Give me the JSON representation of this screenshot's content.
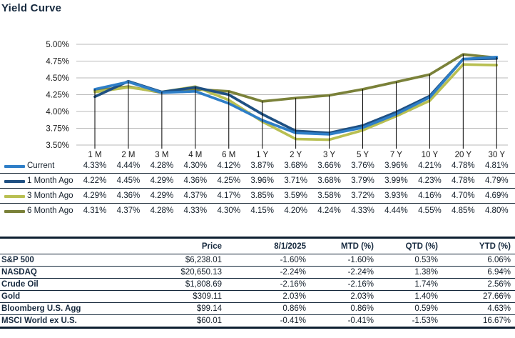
{
  "title": "Yield Curve",
  "colors": {
    "current": "#2E7EC7",
    "one_month_ago": "#1F5082",
    "three_month_ago": "#B8BF52",
    "six_month_ago": "#7A8139",
    "grid_line": "#b9b9b9",
    "drop_line": "#000000",
    "axis_text": "#1a1a1a",
    "border_dark": "#0d1f31"
  },
  "chart_data": {
    "type": "line",
    "title": "Yield Curve",
    "categories": [
      "1 M",
      "2 M",
      "3 M",
      "4 M",
      "6 M",
      "1 Y",
      "2 Y",
      "3 Y",
      "5 Y",
      "7 Y",
      "10 Y",
      "20 Y",
      "30 Y"
    ],
    "series": [
      {
        "name": "Current",
        "color": "#2E7EC7",
        "values": [
          4.33,
          4.44,
          4.28,
          4.3,
          4.12,
          3.87,
          3.68,
          3.66,
          3.76,
          3.96,
          4.21,
          4.78,
          4.81
        ]
      },
      {
        "name": "1 Month Ago",
        "color": "#1F5082",
        "values": [
          4.22,
          4.45,
          4.29,
          4.36,
          4.25,
          3.96,
          3.71,
          3.68,
          3.79,
          3.99,
          4.23,
          4.78,
          4.79
        ]
      },
      {
        "name": "3 Month Ago",
        "color": "#B8BF52",
        "values": [
          4.29,
          4.36,
          4.29,
          4.37,
          4.17,
          3.85,
          3.59,
          3.58,
          3.72,
          3.93,
          4.16,
          4.7,
          4.69
        ]
      },
      {
        "name": "6 Month Ago",
        "color": "#7A8139",
        "values": [
          4.31,
          4.37,
          4.28,
          4.33,
          4.3,
          4.15,
          4.2,
          4.24,
          4.33,
          4.44,
          4.55,
          4.85,
          4.8
        ]
      }
    ],
    "y_ticks": [
      "5.00%",
      "4.75%",
      "4.50%",
      "4.25%",
      "4.00%",
      "3.75%",
      "3.50%"
    ],
    "ylim": [
      3.5,
      5.0
    ],
    "grid": true,
    "drop_lines": true,
    "legend_position": "bottom-table",
    "value_suffix": "%"
  },
  "market_table": {
    "headers": [
      "",
      "Price",
      "8/1/2025",
      "MTD (%)",
      "QTD (%)",
      "YTD (%)"
    ],
    "rows": [
      [
        "S&P 500",
        "$6,238.01",
        "-1.60%",
        "-1.60%",
        "0.53%",
        "6.06%"
      ],
      [
        "NASDAQ",
        "$20,650.13",
        "-2.24%",
        "-2.24%",
        "1.38%",
        "6.94%"
      ],
      [
        "Crude Oil",
        "$1,808.69",
        "-2.16%",
        "-2.16%",
        "1.74%",
        "2.56%"
      ],
      [
        "Gold",
        "$309.11",
        "2.03%",
        "2.03%",
        "1.40%",
        "27.66%"
      ],
      [
        "Bloomberg U.S. Agg",
        "$99.14",
        "0.86%",
        "0.86%",
        "0.59%",
        "4.63%"
      ],
      [
        "MSCI World ex U.S.",
        "$60.01",
        "-0.41%",
        "-0.41%",
        "-1.53%",
        "16.67%"
      ]
    ]
  }
}
